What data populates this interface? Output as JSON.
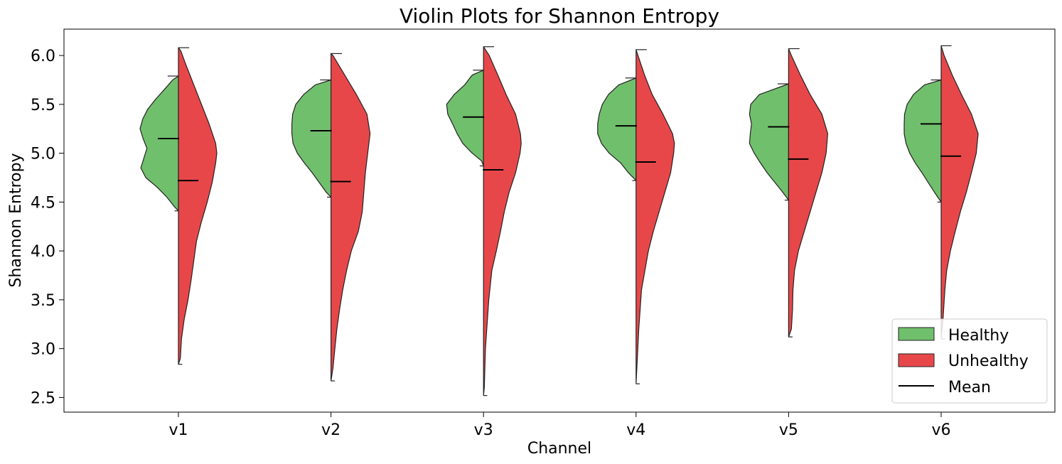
{
  "chart_data": {
    "type": "violin",
    "title": "Violin Plots for Shannon Entropy",
    "xlabel": "Channel",
    "ylabel": "Shannon Entropy",
    "categories": [
      "v1",
      "v2",
      "v3",
      "v4",
      "v5",
      "v6"
    ],
    "ylim": [
      2.35,
      6.27
    ],
    "yticks": [
      "2.5",
      "3.0",
      "3.5",
      "4.0",
      "4.5",
      "5.0",
      "5.5",
      "6.0"
    ],
    "grid": false,
    "legend_position": "lower-right",
    "legend": {
      "healthy": "Healthy",
      "unhealthy": "Unhealthy",
      "mean": "Mean"
    },
    "colors": {
      "healthy": "#70bf6c",
      "unhealthy": "#e8474a",
      "edge": "#222222"
    },
    "series": [
      {
        "name": "Healthy",
        "side": "left",
        "stats": [
          {
            "category": "v1",
            "min": 4.41,
            "max": 5.79,
            "mean": 5.15
          },
          {
            "category": "v2",
            "min": 4.55,
            "max": 5.75,
            "mean": 5.23
          },
          {
            "category": "v3",
            "min": 4.87,
            "max": 5.85,
            "mean": 5.37
          },
          {
            "category": "v4",
            "min": 4.72,
            "max": 5.77,
            "mean": 5.28
          },
          {
            "category": "v5",
            "min": 4.52,
            "max": 5.71,
            "mean": 5.27
          },
          {
            "category": "v6",
            "min": 4.5,
            "max": 5.75,
            "mean": 5.3
          }
        ],
        "density_profiles": [
          [
            [
              4.41,
              0.0
            ],
            [
              4.45,
              0.1
            ],
            [
              4.55,
              0.3
            ],
            [
              4.65,
              0.55
            ],
            [
              4.75,
              0.85
            ],
            [
              4.85,
              0.98
            ],
            [
              4.95,
              0.9
            ],
            [
              5.05,
              0.82
            ],
            [
              5.15,
              0.92
            ],
            [
              5.25,
              1.0
            ],
            [
              5.35,
              0.93
            ],
            [
              5.45,
              0.8
            ],
            [
              5.55,
              0.6
            ],
            [
              5.65,
              0.37
            ],
            [
              5.75,
              0.15
            ],
            [
              5.79,
              0.0
            ]
          ],
          [
            [
              4.55,
              0.0
            ],
            [
              4.6,
              0.12
            ],
            [
              4.7,
              0.3
            ],
            [
              4.8,
              0.48
            ],
            [
              4.9,
              0.68
            ],
            [
              5.0,
              0.86
            ],
            [
              5.1,
              0.97
            ],
            [
              5.2,
              1.0
            ],
            [
              5.3,
              1.0
            ],
            [
              5.4,
              0.98
            ],
            [
              5.5,
              0.9
            ],
            [
              5.6,
              0.7
            ],
            [
              5.7,
              0.4
            ],
            [
              5.75,
              0.0
            ]
          ],
          [
            [
              4.87,
              0.0
            ],
            [
              4.92,
              0.05
            ],
            [
              5.0,
              0.3
            ],
            [
              5.1,
              0.55
            ],
            [
              5.2,
              0.7
            ],
            [
              5.3,
              0.82
            ],
            [
              5.4,
              0.95
            ],
            [
              5.5,
              0.98
            ],
            [
              5.6,
              0.78
            ],
            [
              5.7,
              0.5
            ],
            [
              5.8,
              0.3
            ],
            [
              5.85,
              0.0
            ]
          ],
          [
            [
              4.72,
              0.0
            ],
            [
              4.8,
              0.2
            ],
            [
              4.9,
              0.4
            ],
            [
              5.0,
              0.7
            ],
            [
              5.1,
              0.9
            ],
            [
              5.2,
              1.0
            ],
            [
              5.3,
              1.0
            ],
            [
              5.4,
              0.96
            ],
            [
              5.5,
              0.88
            ],
            [
              5.6,
              0.72
            ],
            [
              5.7,
              0.45
            ],
            [
              5.77,
              0.0
            ]
          ],
          [
            [
              4.52,
              0.0
            ],
            [
              4.6,
              0.15
            ],
            [
              4.7,
              0.35
            ],
            [
              4.8,
              0.55
            ],
            [
              4.9,
              0.72
            ],
            [
              5.0,
              0.88
            ],
            [
              5.1,
              1.0
            ],
            [
              5.2,
              0.98
            ],
            [
              5.3,
              0.95
            ],
            [
              5.4,
              1.0
            ],
            [
              5.5,
              0.97
            ],
            [
              5.6,
              0.75
            ],
            [
              5.71,
              0.0
            ]
          ],
          [
            [
              4.5,
              0.0
            ],
            [
              4.6,
              0.18
            ],
            [
              4.7,
              0.35
            ],
            [
              4.8,
              0.52
            ],
            [
              4.9,
              0.7
            ],
            [
              5.0,
              0.85
            ],
            [
              5.1,
              0.95
            ],
            [
              5.2,
              1.0
            ],
            [
              5.3,
              1.0
            ],
            [
              5.4,
              0.99
            ],
            [
              5.5,
              0.92
            ],
            [
              5.6,
              0.75
            ],
            [
              5.7,
              0.45
            ],
            [
              5.75,
              0.0
            ]
          ]
        ]
      },
      {
        "name": "Unhealthy",
        "side": "right",
        "stats": [
          {
            "category": "v1",
            "min": 2.84,
            "max": 6.08,
            "mean": 4.72
          },
          {
            "category": "v2",
            "min": 2.67,
            "max": 6.02,
            "mean": 4.71
          },
          {
            "category": "v3",
            "min": 2.52,
            "max": 6.09,
            "mean": 4.83
          },
          {
            "category": "v4",
            "min": 2.64,
            "max": 6.06,
            "mean": 4.91
          },
          {
            "category": "v5",
            "min": 3.12,
            "max": 6.07,
            "mean": 4.94
          },
          {
            "category": "v6",
            "min": 3.1,
            "max": 6.1,
            "mean": 4.97
          }
        ],
        "density_profiles": [
          [
            [
              2.84,
              0.0
            ],
            [
              2.9,
              0.05
            ],
            [
              3.1,
              0.08
            ],
            [
              3.3,
              0.15
            ],
            [
              3.5,
              0.25
            ],
            [
              3.7,
              0.33
            ],
            [
              3.9,
              0.4
            ],
            [
              4.1,
              0.47
            ],
            [
              4.3,
              0.6
            ],
            [
              4.5,
              0.75
            ],
            [
              4.7,
              0.88
            ],
            [
              4.9,
              0.97
            ],
            [
              5.0,
              1.0
            ],
            [
              5.1,
              0.97
            ],
            [
              5.3,
              0.8
            ],
            [
              5.5,
              0.6
            ],
            [
              5.7,
              0.4
            ],
            [
              5.9,
              0.2
            ],
            [
              6.05,
              0.06
            ],
            [
              6.08,
              0.0
            ]
          ],
          [
            [
              2.67,
              0.0
            ],
            [
              2.8,
              0.05
            ],
            [
              3.0,
              0.1
            ],
            [
              3.2,
              0.15
            ],
            [
              3.4,
              0.22
            ],
            [
              3.6,
              0.3
            ],
            [
              3.8,
              0.4
            ],
            [
              4.0,
              0.52
            ],
            [
              4.2,
              0.7
            ],
            [
              4.4,
              0.8
            ],
            [
              4.6,
              0.84
            ],
            [
              4.8,
              0.88
            ],
            [
              5.0,
              0.94
            ],
            [
              5.2,
              1.0
            ],
            [
              5.4,
              0.92
            ],
            [
              5.6,
              0.65
            ],
            [
              5.8,
              0.35
            ],
            [
              6.0,
              0.05
            ],
            [
              6.02,
              0.0
            ]
          ],
          [
            [
              2.52,
              0.0
            ],
            [
              2.6,
              0.02
            ],
            [
              3.0,
              0.05
            ],
            [
              3.5,
              0.14
            ],
            [
              3.8,
              0.22
            ],
            [
              4.0,
              0.34
            ],
            [
              4.2,
              0.45
            ],
            [
              4.4,
              0.55
            ],
            [
              4.6,
              0.68
            ],
            [
              4.8,
              0.85
            ],
            [
              5.0,
              0.97
            ],
            [
              5.1,
              1.0
            ],
            [
              5.2,
              0.98
            ],
            [
              5.4,
              0.85
            ],
            [
              5.6,
              0.6
            ],
            [
              5.8,
              0.38
            ],
            [
              6.0,
              0.15
            ],
            [
              6.09,
              0.0
            ]
          ],
          [
            [
              2.64,
              0.0
            ],
            [
              2.8,
              0.02
            ],
            [
              3.2,
              0.07
            ],
            [
              3.6,
              0.14
            ],
            [
              4.0,
              0.32
            ],
            [
              4.2,
              0.45
            ],
            [
              4.4,
              0.6
            ],
            [
              4.6,
              0.75
            ],
            [
              4.8,
              0.9
            ],
            [
              5.0,
              0.98
            ],
            [
              5.1,
              1.0
            ],
            [
              5.2,
              0.95
            ],
            [
              5.4,
              0.7
            ],
            [
              5.6,
              0.42
            ],
            [
              5.8,
              0.22
            ],
            [
              6.0,
              0.05
            ],
            [
              6.06,
              0.0
            ]
          ],
          [
            [
              3.12,
              0.0
            ],
            [
              3.2,
              0.07
            ],
            [
              3.4,
              0.1
            ],
            [
              3.6,
              0.11
            ],
            [
              3.8,
              0.15
            ],
            [
              4.0,
              0.25
            ],
            [
              4.2,
              0.4
            ],
            [
              4.4,
              0.55
            ],
            [
              4.6,
              0.7
            ],
            [
              4.8,
              0.85
            ],
            [
              5.0,
              0.96
            ],
            [
              5.2,
              1.0
            ],
            [
              5.4,
              0.85
            ],
            [
              5.6,
              0.55
            ],
            [
              5.8,
              0.3
            ],
            [
              6.0,
              0.07
            ],
            [
              6.07,
              0.0
            ]
          ],
          [
            [
              3.1,
              0.0
            ],
            [
              3.3,
              0.05
            ],
            [
              3.6,
              0.1
            ],
            [
              3.8,
              0.15
            ],
            [
              4.0,
              0.25
            ],
            [
              4.2,
              0.38
            ],
            [
              4.4,
              0.52
            ],
            [
              4.6,
              0.68
            ],
            [
              4.8,
              0.82
            ],
            [
              5.0,
              0.95
            ],
            [
              5.2,
              1.0
            ],
            [
              5.4,
              0.82
            ],
            [
              5.6,
              0.55
            ],
            [
              5.8,
              0.3
            ],
            [
              6.0,
              0.08
            ],
            [
              6.1,
              0.0
            ]
          ]
        ]
      }
    ]
  }
}
